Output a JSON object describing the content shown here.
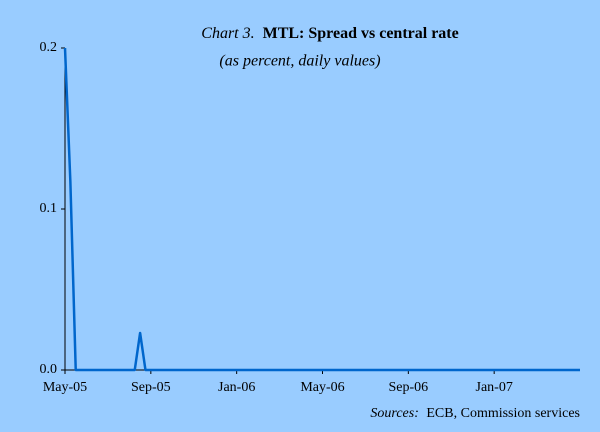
{
  "chart_data": {
    "type": "line",
    "title_label": "Chart 3.",
    "title": "MTL: Spread vs central rate",
    "subtitle": "(as percent, daily values)",
    "source_label": "Sources:",
    "source": "ECB, Commission services",
    "categories": [
      "May-05",
      null,
      null,
      null,
      null,
      null,
      null,
      null,
      null,
      null,
      null,
      null,
      null,
      null,
      null,
      null,
      "Sep-05",
      null,
      null,
      null,
      null,
      null,
      null,
      null,
      null,
      null,
      null,
      null,
      null,
      null,
      null,
      null,
      "Jan-06",
      null,
      null,
      null,
      null,
      null,
      null,
      null,
      null,
      null,
      null,
      null,
      null,
      null,
      null,
      null,
      "May-06",
      null,
      null,
      null,
      null,
      null,
      null,
      null,
      null,
      null,
      null,
      null,
      null,
      null,
      null,
      null,
      "Sep-06",
      null,
      null,
      null,
      null,
      null,
      null,
      null,
      null,
      null,
      null,
      null,
      null,
      null,
      null,
      null,
      "Jan-07",
      null,
      null,
      null,
      null,
      null,
      null,
      null,
      null,
      null,
      null,
      null,
      null,
      null,
      null,
      null,
      null
    ],
    "series": [
      {
        "color": "#0066cc",
        "values": [
          0.2,
          0.117,
          0,
          0,
          0,
          0,
          0,
          0,
          0,
          0,
          0,
          0,
          0,
          0,
          0.023,
          0,
          0,
          0,
          0,
          0,
          0,
          0,
          0,
          0,
          0,
          0,
          0,
          0,
          0,
          0,
          0,
          0,
          0,
          0,
          0,
          0,
          0,
          0,
          0,
          0,
          0,
          0,
          0,
          0,
          0,
          0,
          0,
          0,
          0,
          0,
          0,
          0,
          0,
          0,
          0,
          0,
          0,
          0,
          0,
          0,
          0,
          0,
          0,
          0,
          0,
          0,
          0,
          0,
          0,
          0,
          0,
          0,
          0,
          0,
          0,
          0,
          0,
          0,
          0,
          0,
          0,
          0,
          0,
          0,
          0,
          0,
          0,
          0,
          0,
          0,
          0,
          0,
          0,
          0,
          0,
          0,
          0
        ]
      }
    ],
    "ylim": [
      0,
      0.2
    ],
    "yticks": [
      {
        "value": 0,
        "label": "0.0"
      },
      0.1,
      0.2
    ],
    "background": "#99ccff"
  }
}
